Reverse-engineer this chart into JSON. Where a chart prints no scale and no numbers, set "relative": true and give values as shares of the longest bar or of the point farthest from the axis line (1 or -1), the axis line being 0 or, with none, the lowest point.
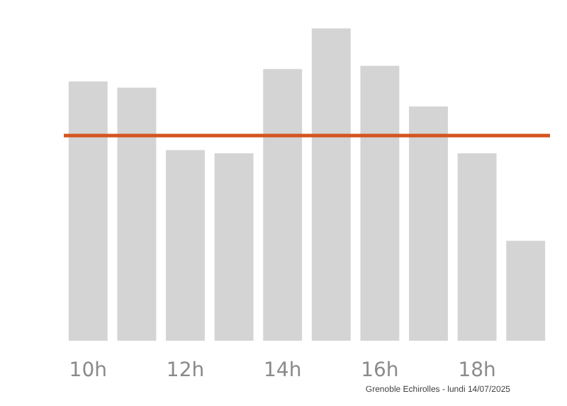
{
  "chart_data": {
    "type": "bar",
    "relative": true,
    "categories": [
      "10h",
      null,
      "12h",
      null,
      "14h",
      null,
      "16h",
      null,
      "18h",
      null
    ],
    "series": [
      {
        "color": "#d4d4d4",
        "values": [
          0.83,
          0.81,
          0.61,
          0.6,
          0.87,
          1,
          0.88,
          0.75,
          0.6,
          0.32
        ]
      }
    ],
    "ref_lines": [
      {
        "axis": "y",
        "value": 0.66,
        "color": "#d4541e",
        "line_style": "solid"
      }
    ],
    "annotations": [
      "Grenoble Echirolles - lundi 14/07/2025"
    ]
  }
}
